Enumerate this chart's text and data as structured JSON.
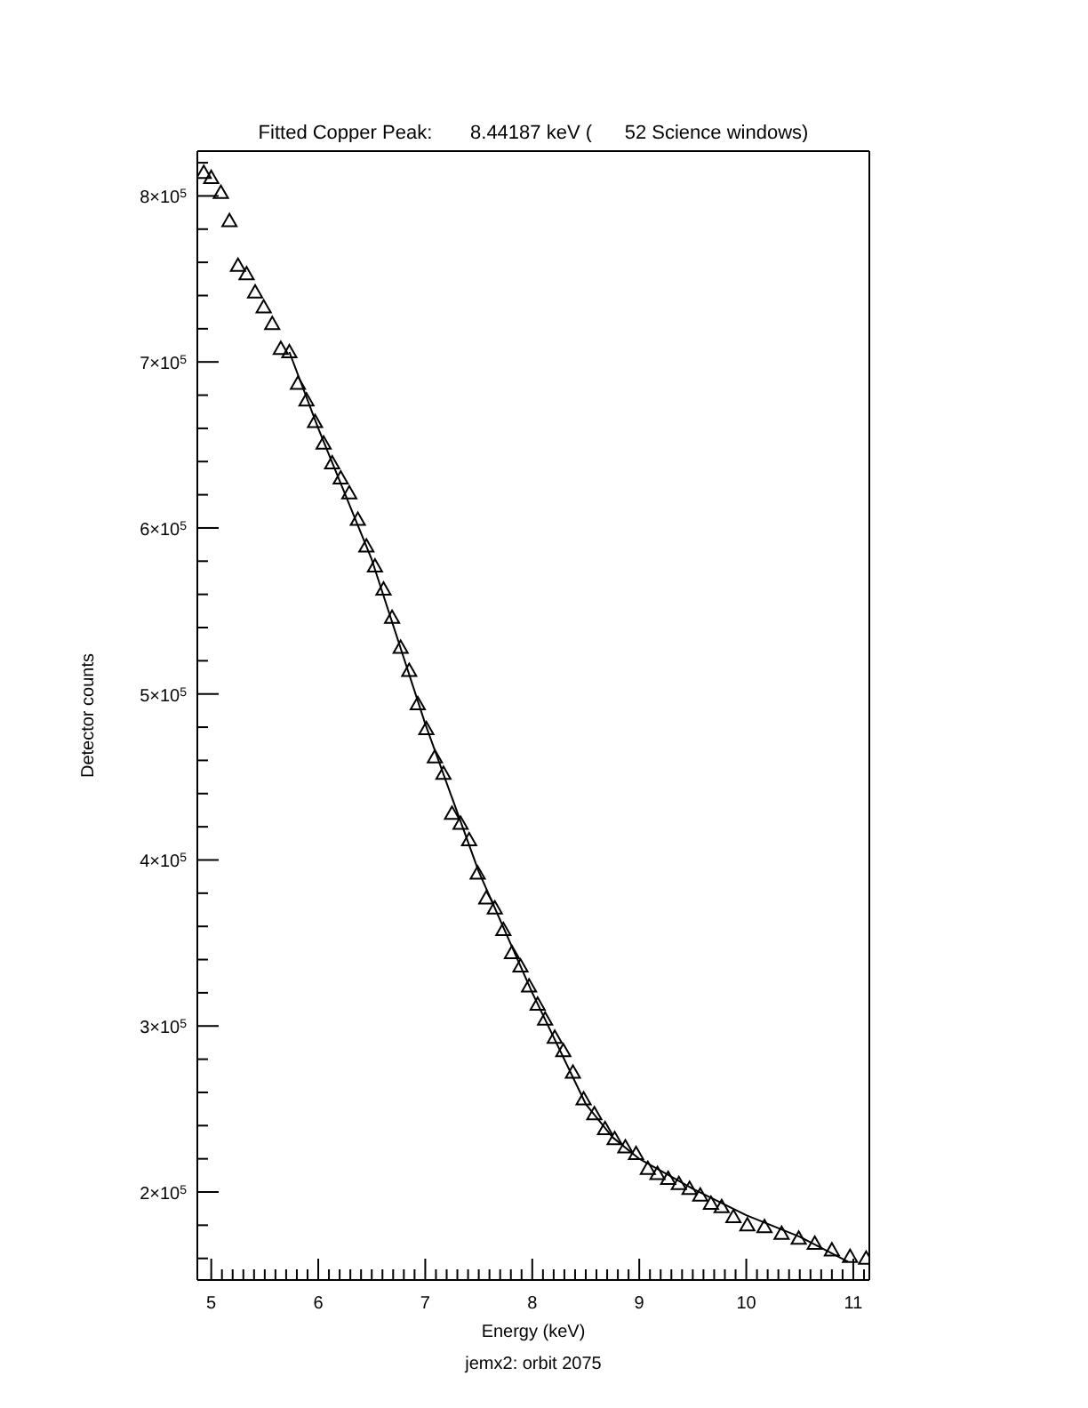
{
  "chart_data": {
    "type": "scatter",
    "title": "Fitted Copper Peak:       8.44187 keV (      52 Science windows)",
    "xlabel": "Energy (keV)",
    "ylabel": "Detector counts",
    "annotations": [
      "jemx2: orbit 2075"
    ],
    "xlim": [
      4.87,
      11.15
    ],
    "ylim": [
      147000,
      827000
    ],
    "xticks": [
      5,
      {
        "value": 5.1,
        "label": null
      },
      {
        "value": 5.2,
        "label": null
      },
      {
        "value": 5.3,
        "label": null
      },
      {
        "value": 5.4,
        "label": null
      },
      {
        "value": 5.5,
        "label": null
      },
      {
        "value": 5.6,
        "label": null
      },
      {
        "value": 5.7,
        "label": null
      },
      {
        "value": 5.8,
        "label": null
      },
      {
        "value": 5.9,
        "label": null
      },
      6,
      {
        "value": 6.1,
        "label": null
      },
      {
        "value": 6.2,
        "label": null
      },
      {
        "value": 6.3,
        "label": null
      },
      {
        "value": 6.4,
        "label": null
      },
      {
        "value": 6.5,
        "label": null
      },
      {
        "value": 6.6,
        "label": null
      },
      {
        "value": 6.7,
        "label": null
      },
      {
        "value": 6.8,
        "label": null
      },
      {
        "value": 6.9,
        "label": null
      },
      7,
      {
        "value": 7.1,
        "label": null
      },
      {
        "value": 7.2,
        "label": null
      },
      {
        "value": 7.3,
        "label": null
      },
      {
        "value": 7.4,
        "label": null
      },
      {
        "value": 7.5,
        "label": null
      },
      {
        "value": 7.6,
        "label": null
      },
      {
        "value": 7.7,
        "label": null
      },
      {
        "value": 7.8,
        "label": null
      },
      {
        "value": 7.9,
        "label": null
      },
      8,
      {
        "value": 8.1,
        "label": null
      },
      {
        "value": 8.2,
        "label": null
      },
      {
        "value": 8.3,
        "label": null
      },
      {
        "value": 8.4,
        "label": null
      },
      {
        "value": 8.5,
        "label": null
      },
      {
        "value": 8.6,
        "label": null
      },
      {
        "value": 8.7,
        "label": null
      },
      {
        "value": 8.8,
        "label": null
      },
      {
        "value": 8.9,
        "label": null
      },
      9,
      {
        "value": 9.1,
        "label": null
      },
      {
        "value": 9.2,
        "label": null
      },
      {
        "value": 9.3,
        "label": null
      },
      {
        "value": 9.4,
        "label": null
      },
      {
        "value": 9.5,
        "label": null
      },
      {
        "value": 9.6,
        "label": null
      },
      {
        "value": 9.7,
        "label": null
      },
      {
        "value": 9.8,
        "label": null
      },
      {
        "value": 9.9,
        "label": null
      },
      10,
      {
        "value": 10.1,
        "label": null
      },
      {
        "value": 10.2,
        "label": null
      },
      {
        "value": 10.3,
        "label": null
      },
      {
        "value": 10.4,
        "label": null
      },
      {
        "value": 10.5,
        "label": null
      },
      {
        "value": 10.6,
        "label": null
      },
      {
        "value": 10.7,
        "label": null
      },
      {
        "value": 10.8,
        "label": null
      },
      {
        "value": 10.9,
        "label": null
      },
      11,
      {
        "value": 11.1,
        "label": null
      }
    ],
    "yticks": [
      {
        "value": 160000,
        "label": null
      },
      {
        "value": 180000,
        "label": null
      },
      {
        "value": 200000,
        "label": "2×10$^{5}$"
      },
      {
        "value": 220000,
        "label": null
      },
      {
        "value": 240000,
        "label": null
      },
      {
        "value": 260000,
        "label": null
      },
      {
        "value": 280000,
        "label": null
      },
      {
        "value": 300000,
        "label": "3×10$^{5}$"
      },
      {
        "value": 320000,
        "label": null
      },
      {
        "value": 340000,
        "label": null
      },
      {
        "value": 360000,
        "label": null
      },
      {
        "value": 380000,
        "label": null
      },
      {
        "value": 400000,
        "label": "4×10$^{5}$"
      },
      {
        "value": 420000,
        "label": null
      },
      {
        "value": 440000,
        "label": null
      },
      {
        "value": 460000,
        "label": null
      },
      {
        "value": 480000,
        "label": null
      },
      {
        "value": 500000,
        "label": "5×10$^{5}$"
      },
      {
        "value": 520000,
        "label": null
      },
      {
        "value": 540000,
        "label": null
      },
      {
        "value": 560000,
        "label": null
      },
      {
        "value": 580000,
        "label": null
      },
      {
        "value": 600000,
        "label": "6×10$^{5}$"
      },
      {
        "value": 620000,
        "label": null
      },
      {
        "value": 640000,
        "label": null
      },
      {
        "value": 660000,
        "label": null
      },
      {
        "value": 680000,
        "label": null
      },
      {
        "value": 700000,
        "label": "7×10$^{5}$"
      },
      {
        "value": 720000,
        "label": null
      },
      {
        "value": 740000,
        "label": null
      },
      {
        "value": 760000,
        "label": null
      },
      {
        "value": 780000,
        "label": null
      },
      {
        "value": 800000,
        "label": "8×10$^{5}$"
      },
      {
        "value": 820000,
        "label": null
      }
    ],
    "series": [
      {
        "color": "#000000",
        "marker": "triangle",
        "x": [
          4.93,
          5.0,
          5.09,
          5.17,
          5.25,
          5.33,
          5.41,
          5.49,
          5.57,
          5.65,
          5.73,
          5.81,
          5.89,
          5.97,
          6.05,
          6.13,
          6.21,
          6.29,
          6.37,
          6.45,
          6.53,
          6.61,
          6.69,
          6.77,
          6.85,
          6.93,
          7.01,
          7.09,
          7.17,
          7.25,
          7.33,
          7.41,
          7.49,
          7.57,
          7.65,
          7.73,
          7.81,
          7.89,
          7.97,
          8.05,
          8.12,
          8.21,
          8.29,
          8.38,
          8.48,
          8.58,
          8.68,
          8.77,
          8.87,
          8.97,
          9.08,
          9.17,
          9.27,
          9.37,
          9.47,
          9.57,
          9.67,
          9.77,
          9.88,
          10.01,
          10.17,
          10.33,
          10.49,
          10.64,
          10.8,
          10.97,
          11.12
        ],
        "values": [
          814000,
          811000,
          802000,
          785000,
          758000,
          753000,
          742000,
          733000,
          723000,
          708000,
          706000,
          687000,
          677000,
          664000,
          651000,
          639000,
          630000,
          621000,
          605000,
          589000,
          577000,
          563000,
          546000,
          528000,
          514000,
          494000,
          479000,
          462000,
          452000,
          428000,
          422000,
          412000,
          392000,
          377000,
          371000,
          358000,
          344000,
          336000,
          324000,
          313000,
          304000,
          293000,
          285000,
          272000,
          256000,
          247000,
          238000,
          232000,
          227000,
          223000,
          214000,
          211000,
          208000,
          205000,
          202000,
          198000,
          193000,
          191000,
          185000,
          180000,
          179000,
          175000,
          172000,
          169000,
          165000,
          161000,
          160000
        ]
      },
      {
        "type": "line",
        "color": "#000000",
        "marker": "none",
        "line_style": "solid",
        "x": [
          5.73,
          6.0,
          6.5,
          7.0,
          7.5,
          8.0,
          8.5,
          8.75,
          9.0,
          9.5,
          10.0,
          10.5,
          10.95
        ],
        "values": [
          706000,
          660000,
          581000,
          482000,
          393000,
          320000,
          253000,
          233000,
          220000,
          202000,
          186000,
          173000,
          158000
        ]
      }
    ]
  }
}
